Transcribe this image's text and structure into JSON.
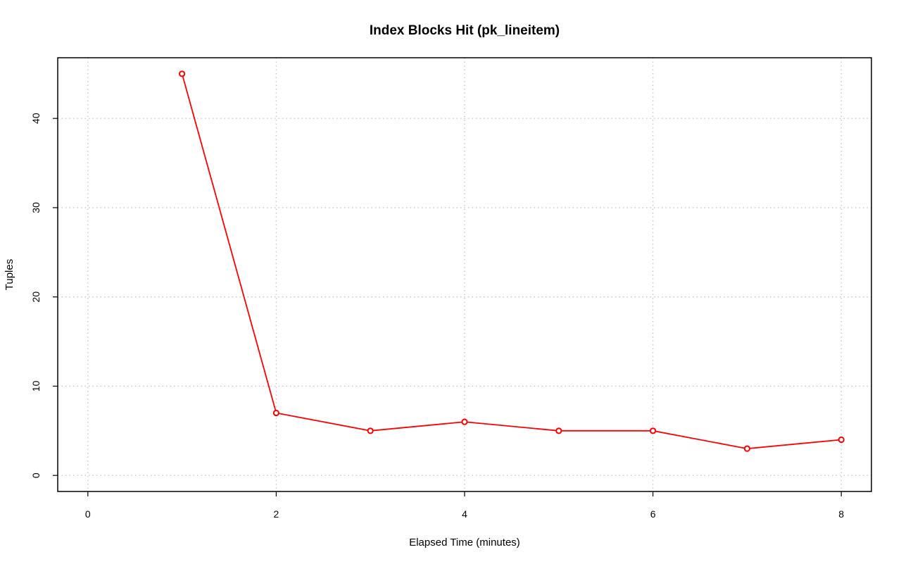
{
  "chart_data": {
    "type": "line",
    "title": "Index Blocks Hit (pk_lineitem)",
    "xlabel": "Elapsed Time (minutes)",
    "ylabel": "Tuples",
    "x": [
      1,
      2,
      3,
      4,
      5,
      6,
      7,
      8
    ],
    "series": [
      {
        "values": [
          45,
          7,
          5,
          6,
          5,
          5,
          3,
          4
        ]
      }
    ],
    "x_ticks": [
      0,
      2,
      4,
      6,
      8
    ],
    "y_ticks": [
      0,
      10,
      20,
      30,
      40
    ],
    "xlim": [
      0,
      8
    ],
    "ylim": [
      0,
      45
    ],
    "grid": true,
    "series_color": "#ff0000",
    "marker": "open-circle"
  }
}
